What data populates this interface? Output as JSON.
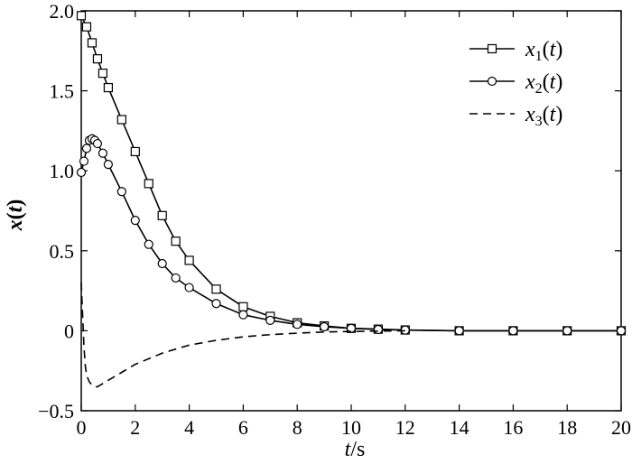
{
  "chart_data": {
    "type": "line",
    "xlabel": {
      "var": "t",
      "unit": "/s"
    },
    "ylabel": {
      "var": "x",
      "open": "(",
      "arg": "t",
      "close": ")"
    },
    "xlim": [
      0,
      20
    ],
    "ylim": [
      -0.5,
      2.0
    ],
    "xticks": [
      {
        "value": 0,
        "label": "0"
      },
      {
        "value": 2,
        "label": "2"
      },
      {
        "value": 4,
        "label": "4"
      },
      {
        "value": 6,
        "label": "6"
      },
      {
        "value": 8,
        "label": "8"
      },
      {
        "value": 10,
        "label": "10"
      },
      {
        "value": 12,
        "label": "12"
      },
      {
        "value": 14,
        "label": "14"
      },
      {
        "value": 16,
        "label": "16"
      },
      {
        "value": 18,
        "label": "18"
      },
      {
        "value": 20,
        "label": "20"
      }
    ],
    "yticks": [
      {
        "value": -0.5,
        "label": "−0.5"
      },
      {
        "value": 0,
        "label": "0"
      },
      {
        "value": 0.5,
        "label": "0.5"
      },
      {
        "value": 1.0,
        "label": "1.0"
      },
      {
        "value": 1.5,
        "label": "1.5"
      },
      {
        "value": 2.0,
        "label": "2.0"
      }
    ],
    "grid": false,
    "legend_position": "top-right",
    "series": [
      {
        "name": "x1(t)",
        "legend": {
          "base": "x",
          "sub": "1",
          "open": "(",
          "arg": "t",
          "close": ")"
        },
        "marker": "square",
        "dash": "solid",
        "x": [
          0,
          0.2,
          0.4,
          0.6,
          0.8,
          1,
          1.5,
          2,
          2.5,
          3,
          3.5,
          4,
          5,
          6,
          7,
          8,
          9,
          10,
          11,
          12,
          14,
          16,
          18,
          20
        ],
        "y": [
          1.97,
          1.9,
          1.8,
          1.7,
          1.61,
          1.52,
          1.32,
          1.12,
          0.92,
          0.72,
          0.56,
          0.44,
          0.26,
          0.15,
          0.09,
          0.05,
          0.03,
          0.015,
          0.01,
          0.005,
          0.0,
          0.0,
          0.0,
          0.0
        ]
      },
      {
        "name": "x2(t)",
        "legend": {
          "base": "x",
          "sub": "2",
          "open": "(",
          "arg": "t",
          "close": ")"
        },
        "marker": "circle",
        "dash": "solid",
        "x": [
          0,
          0.1,
          0.2,
          0.3,
          0.4,
          0.5,
          0.6,
          0.8,
          1,
          1.5,
          2,
          2.5,
          3,
          3.5,
          4,
          5,
          6,
          7,
          8,
          9,
          10,
          11,
          12,
          14,
          16,
          18,
          20
        ],
        "y": [
          0.99,
          1.06,
          1.14,
          1.19,
          1.2,
          1.19,
          1.17,
          1.11,
          1.04,
          0.87,
          0.69,
          0.54,
          0.42,
          0.33,
          0.27,
          0.17,
          0.1,
          0.065,
          0.04,
          0.025,
          0.015,
          0.008,
          0.004,
          0.0,
          0.0,
          0.0,
          0.0
        ]
      },
      {
        "name": "x3(t)",
        "legend": {
          "base": "x",
          "sub": "3",
          "open": "(",
          "arg": "t",
          "close": ")"
        },
        "marker": "none",
        "dash": "dashed",
        "x": [
          0,
          0.05,
          0.1,
          0.15,
          0.2,
          0.3,
          0.4,
          0.5,
          0.6,
          0.8,
          1,
          1.5,
          2,
          3,
          4,
          5,
          6,
          7,
          8,
          9,
          10,
          12
        ],
        "y": [
          0.3,
          0.1,
          -0.1,
          -0.22,
          -0.28,
          -0.32,
          -0.34,
          -0.35,
          -0.35,
          -0.33,
          -0.31,
          -0.26,
          -0.21,
          -0.14,
          -0.09,
          -0.06,
          -0.038,
          -0.024,
          -0.015,
          -0.008,
          -0.004,
          0.0
        ]
      }
    ]
  }
}
